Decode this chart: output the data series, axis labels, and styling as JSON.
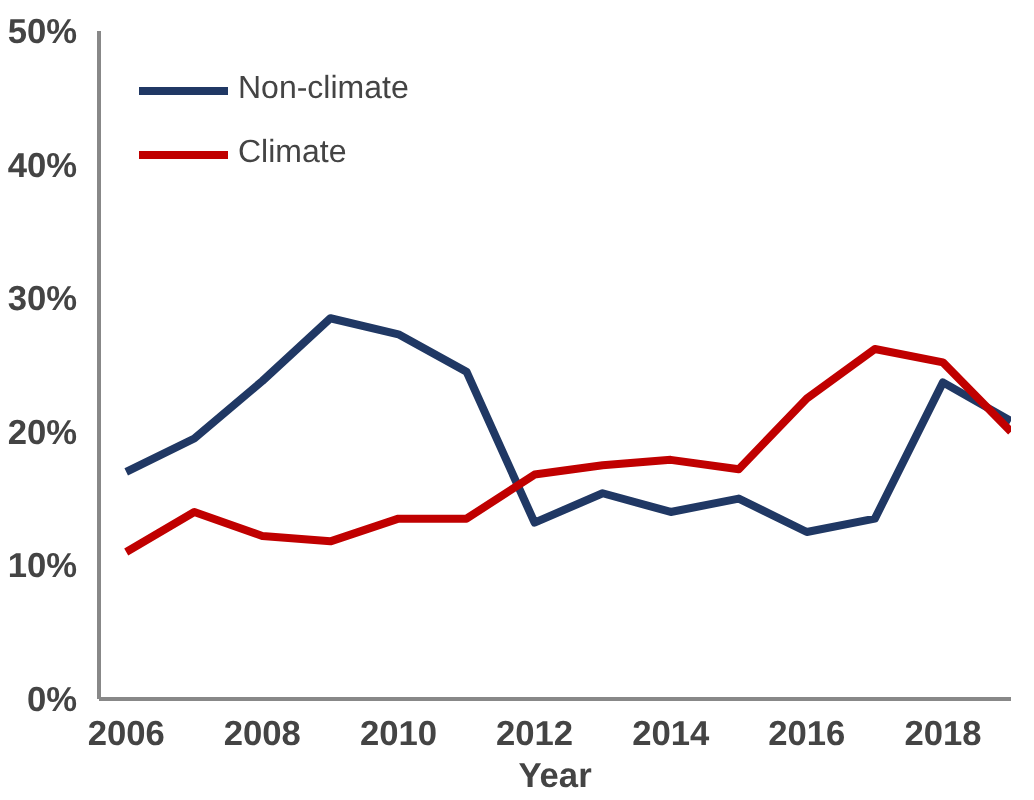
{
  "chart_data": {
    "type": "line",
    "xlabel": "Year",
    "x": [
      2006,
      2007,
      2008,
      2009,
      2010,
      2011,
      2012,
      2013,
      2014,
      2015,
      2016,
      2017,
      2018,
      2019
    ],
    "series": [
      {
        "name": "Non-climate",
        "color": "#203864",
        "values": [
          17,
          19.5,
          23.8,
          28.5,
          27.3,
          24.5,
          13.2,
          15.4,
          14,
          15,
          12.5,
          13.5,
          23.7,
          20.8
        ]
      },
      {
        "name": "Climate",
        "color": "#c00000",
        "values": [
          11,
          14,
          12.2,
          11.8,
          13.5,
          13.5,
          16.8,
          17.5,
          17.9,
          17.2,
          22.5,
          26.2,
          25.2,
          20
        ]
      }
    ],
    "xlim": [
      2005.6,
      2019
    ],
    "xticks": [
      2006,
      2008,
      2010,
      2012,
      2014,
      2016,
      2018
    ],
    "ylim": [
      0,
      50
    ],
    "yticks": [
      {
        "value": 0,
        "label": "0%"
      },
      {
        "value": 10,
        "label": "10%"
      },
      {
        "value": 20,
        "label": "20%"
      },
      {
        "value": 30,
        "label": "30%"
      },
      {
        "value": 40,
        "label": "40%"
      },
      {
        "value": 50,
        "label": "50%"
      }
    ],
    "grid": false,
    "legend": "top left",
    "marker": "none",
    "line_style": "solid"
  }
}
